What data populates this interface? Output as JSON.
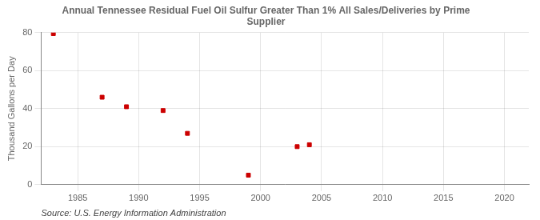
{
  "chart_data": {
    "type": "scatter",
    "title": "Annual Tennessee Residual Fuel Oil Sulfur Greater Than 1% All Sales/Deliveries by Prime\nSupplier",
    "y_label": "Thousand Gallons per Day",
    "annotations": [
      "Source: U.S. Energy Information Administration"
    ],
    "x": [
      1983,
      1987,
      1989,
      1992,
      1994,
      1999,
      2003,
      2004
    ],
    "values": [
      79.5,
      46,
      41,
      39,
      27,
      5,
      20,
      21
    ],
    "color": "#cc0000",
    "marker": "square",
    "xlim": [
      1982,
      2022
    ],
    "ylim": [
      0,
      80
    ],
    "xticks": [
      1985,
      1990,
      1995,
      2000,
      2005,
      2010,
      2015,
      2020
    ],
    "yticks": [
      0,
      20,
      40,
      60,
      80
    ],
    "grid": true
  }
}
